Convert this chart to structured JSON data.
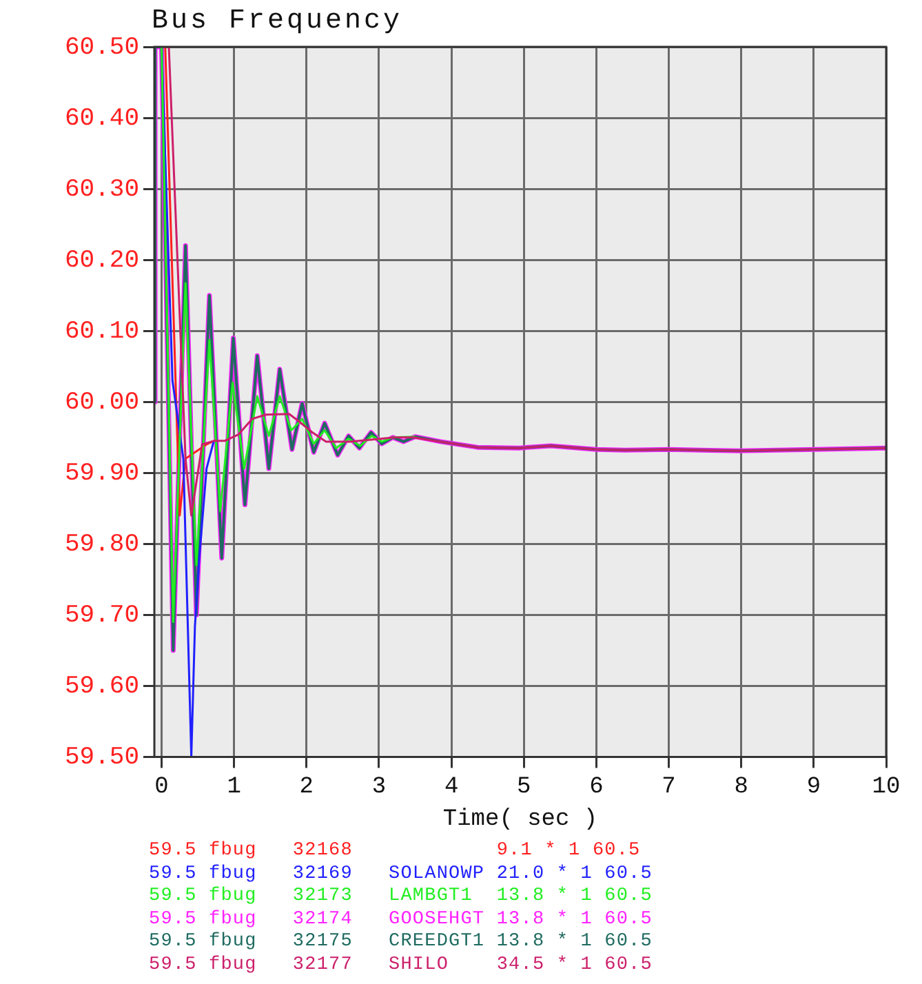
{
  "chart_data": {
    "type": "line",
    "title": "Bus Frequency",
    "xlabel": "Time( sec )",
    "xlim": [
      -0.1,
      10
    ],
    "xticks": [
      0,
      1,
      2,
      3,
      4,
      5,
      6,
      7,
      8,
      9,
      10
    ],
    "ylim": [
      59.5,
      60.5
    ],
    "yticks": [
      {
        "value": 59.5,
        "label": "59.50"
      },
      {
        "value": 59.6,
        "label": "59.60"
      },
      {
        "value": 59.7,
        "label": "59.70"
      },
      {
        "value": 59.8,
        "label": "59.80"
      },
      {
        "value": 59.9,
        "label": "59.90"
      },
      {
        "value": 60.0,
        "label": "60.00"
      },
      {
        "value": 60.1,
        "label": "60.10"
      },
      {
        "value": 60.2,
        "label": "60.20"
      },
      {
        "value": 60.3,
        "label": "60.30"
      },
      {
        "value": 60.4,
        "label": "60.40"
      },
      {
        "value": 60.5,
        "label": "60.50"
      }
    ],
    "grid": true,
    "legend": "bottom",
    "marker": "none",
    "line_style": "solid",
    "series": [
      {
        "name": "59.5 fbug   32168            9.1 * 1 60.5",
        "color": "#ff2020",
        "x": [
          0.05,
          0.25,
          0.33,
          0.62,
          0.72
        ],
        "values": [
          60.5,
          59.84,
          59.92,
          59.94,
          59.945
        ]
      },
      {
        "name": "59.5 fbug   32169   SOLANOWP 21.0 * 1 60.5",
        "color": "#2020ff",
        "x": [
          0.0,
          0.15,
          0.3,
          0.41,
          0.46,
          0.52,
          0.62,
          0.72
        ],
        "values": [
          60.5,
          60.03,
          59.92,
          59.5,
          59.684,
          59.78,
          59.906,
          59.945
        ]
      },
      {
        "name": "59.5 fbug   32173   LAMBGT1  13.8 * 1 60.5",
        "color": "#22ee22",
        "x": [
          0.0,
          0.16,
          0.33,
          0.48,
          0.66,
          0.81,
          0.98,
          1.14,
          1.32,
          1.48,
          1.63,
          1.79,
          1.94,
          2.1,
          2.25,
          2.41,
          2.58,
          2.74,
          2.9,
          3.04,
          3.19,
          3.5
        ],
        "values": [
          60.5,
          59.69,
          60.167,
          59.77,
          60.087,
          59.846,
          60.027,
          59.906,
          60.008,
          59.952,
          60.008,
          59.96,
          59.976,
          59.941,
          59.96,
          59.935,
          59.948,
          59.938,
          59.952,
          59.944,
          59.95,
          59.951
        ]
      },
      {
        "name": "59.5 fbug   32174   GOOSEHGT 13.8 * 1 60.5",
        "color": "#ff22ff",
        "x": [
          -0.1,
          -0.09,
          0.0,
          0.16,
          0.33,
          0.48,
          0.66,
          0.83,
          0.99,
          1.15,
          1.32,
          1.48,
          1.63,
          1.8,
          1.94,
          2.1,
          2.25,
          2.43,
          2.58,
          2.73,
          2.89,
          3.04,
          3.19,
          3.34,
          3.5,
          3.85,
          4.36,
          4.93,
          5.37,
          6.0,
          6.39,
          7.0,
          7.97,
          9.0,
          10
        ],
        "values": [
          60.0,
          60.5,
          60.5,
          59.65,
          60.22,
          59.7,
          60.15,
          59.78,
          60.09,
          59.855,
          60.065,
          59.906,
          60.046,
          59.933,
          59.998,
          59.929,
          59.97,
          59.925,
          59.952,
          59.935,
          59.957,
          59.941,
          59.95,
          59.944,
          59.951,
          59.944,
          59.936,
          59.935,
          59.938,
          59.933,
          59.932,
          59.933,
          59.931,
          59.933,
          59.935
        ]
      },
      {
        "name": "59.5 fbug   32175   CREEDGT1 13.8 * 1 60.5",
        "color": "#1f6b60",
        "x": [
          -0.1,
          -0.09,
          0.0,
          0.16,
          0.33,
          0.48,
          0.66,
          0.83,
          0.99,
          1.15,
          1.32,
          1.48,
          1.63,
          1.8,
          1.94,
          2.1,
          2.25,
          2.43,
          2.58,
          2.73,
          2.89,
          3.04,
          3.19,
          3.34,
          3.5,
          3.85,
          4.36,
          4.93,
          5.37,
          6.0,
          6.39,
          7.0,
          7.97,
          9.0,
          10
        ],
        "values": [
          60.0,
          60.5,
          60.5,
          59.65,
          60.22,
          59.7,
          60.15,
          59.78,
          60.09,
          59.855,
          60.065,
          59.906,
          60.046,
          59.933,
          59.998,
          59.929,
          59.97,
          59.925,
          59.952,
          59.935,
          59.957,
          59.941,
          59.95,
          59.944,
          59.951,
          59.944,
          59.936,
          59.935,
          59.938,
          59.933,
          59.932,
          59.933,
          59.931,
          59.933,
          59.935
        ]
      },
      {
        "name": "59.5 fbug   32177   SHILO    34.5 * 1 60.5",
        "color": "#cc1f6a",
        "x": [
          0.1,
          0.33,
          0.41,
          0.56,
          0.72,
          0.87,
          1.06,
          1.25,
          1.44,
          1.76,
          1.89,
          2.08,
          2.27,
          2.6,
          3.22,
          3.47,
          3.85,
          4.36,
          4.93,
          5.37,
          6.0,
          6.39,
          7.0,
          7.97,
          9.0,
          10
        ],
        "values": [
          60.5,
          59.92,
          59.84,
          59.94,
          59.945,
          59.945,
          59.954,
          59.976,
          59.982,
          59.983,
          59.973,
          59.957,
          59.944,
          59.944,
          59.95,
          59.95,
          59.944,
          59.936,
          59.935,
          59.938,
          59.933,
          59.932,
          59.933,
          59.931,
          59.933,
          59.935
        ]
      }
    ]
  }
}
